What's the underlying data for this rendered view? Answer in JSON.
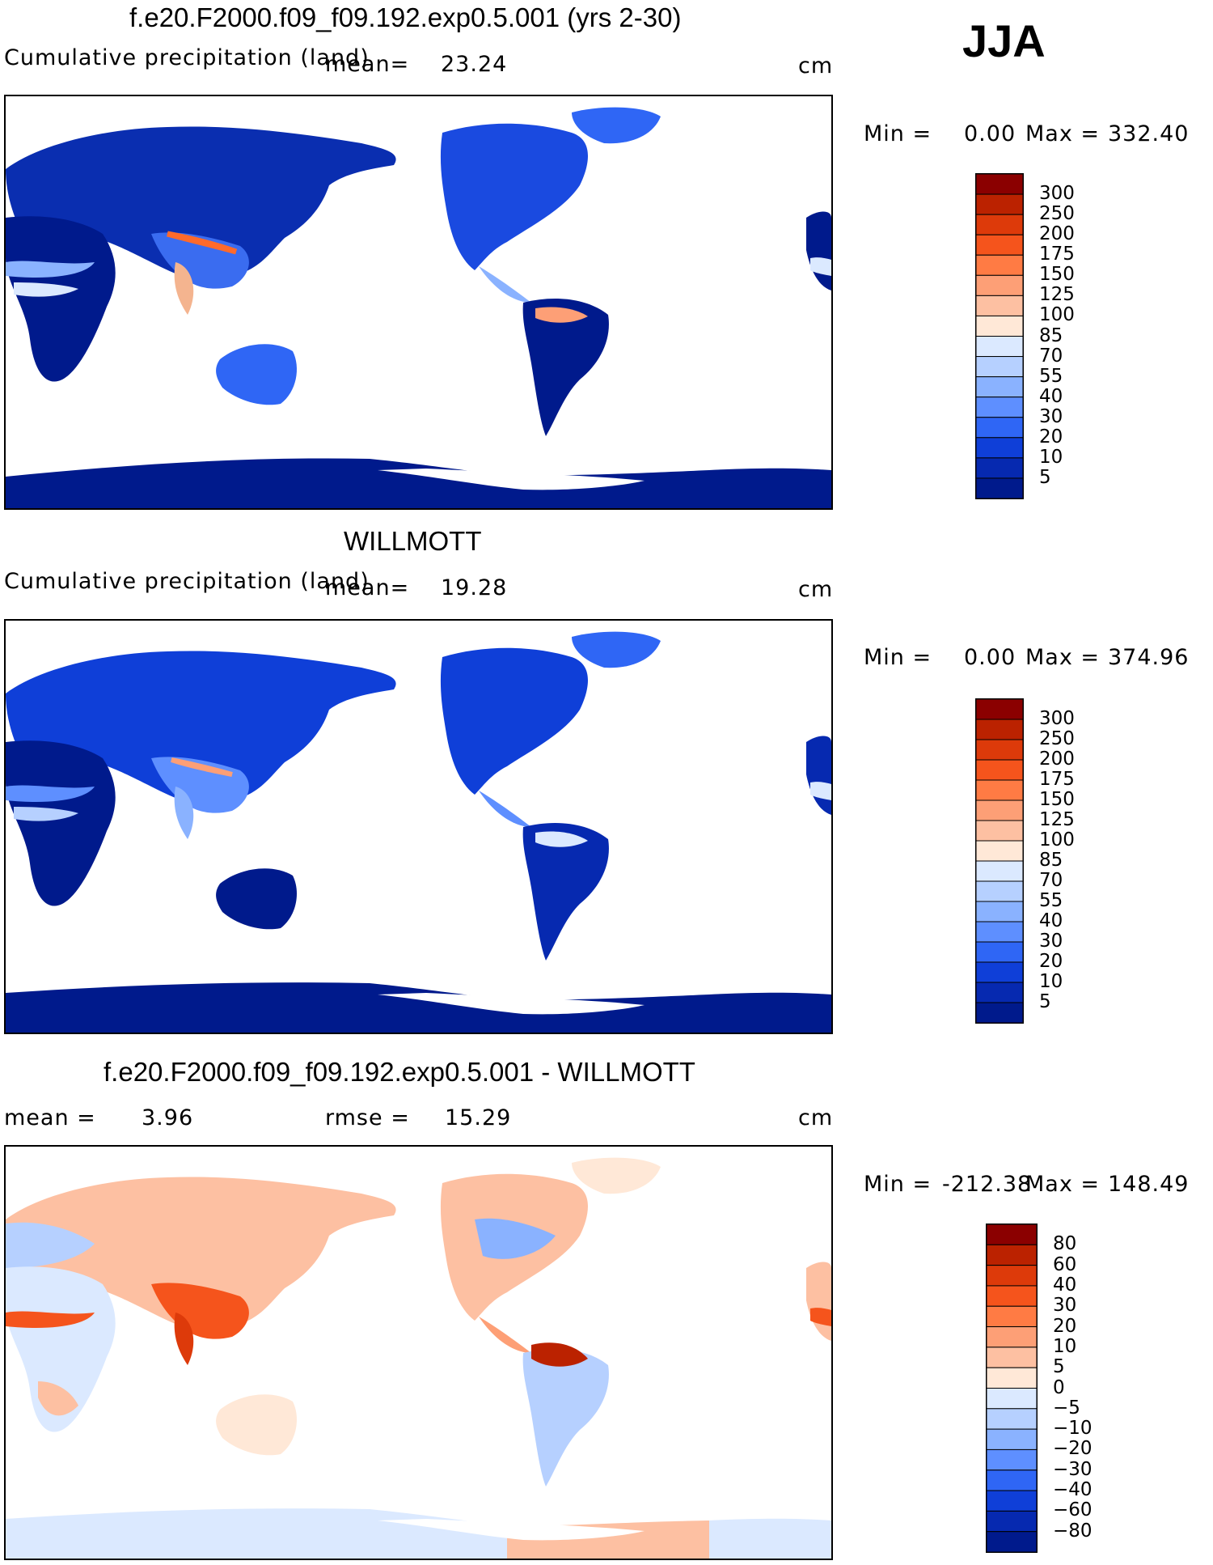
{
  "season": "JJA",
  "panels": [
    {
      "title": "f.e20.F2000.f09_f09.192.exp0.5.001 (yrs 2-30)",
      "subtitle": "Cumulative precipitation (land)",
      "mean_label": "mean=",
      "mean_value": "23.24",
      "units": "cm",
      "min_label": "Min =",
      "min_value": "0.00",
      "max_label": "Max =",
      "max_value": "332.40",
      "levels": [
        "300",
        "250",
        "200",
        "175",
        "150",
        "125",
        "100",
        "85",
        "70",
        "55",
        "40",
        "30",
        "20",
        "10",
        "5"
      ],
      "colors": [
        "#8b0000",
        "#bb2200",
        "#dd3a0a",
        "#f5541c",
        "#ff7b44",
        "#fd9f76",
        "#fdc0a2",
        "#ffe8d7",
        "#dbe9ff",
        "#b6d0ff",
        "#8ab2ff",
        "#5e8fff",
        "#2f66f5",
        "#0f3fd8",
        "#0629b0",
        "#001a8c"
      ]
    },
    {
      "title": "WILLMOTT",
      "subtitle": "Cumulative precipitation (land)",
      "mean_label": "mean=",
      "mean_value": "19.28",
      "units": "cm",
      "min_label": "Min =",
      "min_value": "0.00",
      "max_label": "Max =",
      "max_value": "374.96",
      "levels": [
        "300",
        "250",
        "200",
        "175",
        "150",
        "125",
        "100",
        "85",
        "70",
        "55",
        "40",
        "30",
        "20",
        "10",
        "5"
      ],
      "colors": [
        "#8b0000",
        "#bb2200",
        "#dd3a0a",
        "#f5541c",
        "#ff7b44",
        "#fd9f76",
        "#fdc0a2",
        "#ffe8d7",
        "#dbe9ff",
        "#b6d0ff",
        "#8ab2ff",
        "#5e8fff",
        "#2f66f5",
        "#0f3fd8",
        "#0629b0",
        "#001a8c"
      ]
    },
    {
      "title": "f.e20.F2000.f09_f09.192.exp0.5.001 - WILLMOTT",
      "mean_label": "mean =",
      "mean_value": "3.96",
      "rmse_label": "rmse =",
      "rmse_value": "15.29",
      "units": "cm",
      "min_label": "Min =",
      "min_value": "-212.38",
      "max_label": "Max =",
      "max_value": "148.49",
      "levels": [
        "80",
        "60",
        "40",
        "30",
        "20",
        "10",
        "5",
        "0",
        "-5",
        "-10",
        "-20",
        "-30",
        "-40",
        "-60",
        "-80"
      ],
      "colors": [
        "#8b0000",
        "#bb2200",
        "#dd3a0a",
        "#f5541c",
        "#ff7b44",
        "#fd9f76",
        "#fdc0a2",
        "#ffe8d7",
        "#dbe9ff",
        "#b6d0ff",
        "#8ab2ff",
        "#5e8fff",
        "#2f66f5",
        "#0f3fd8",
        "#0629b0",
        "#001a8c"
      ]
    }
  ]
}
